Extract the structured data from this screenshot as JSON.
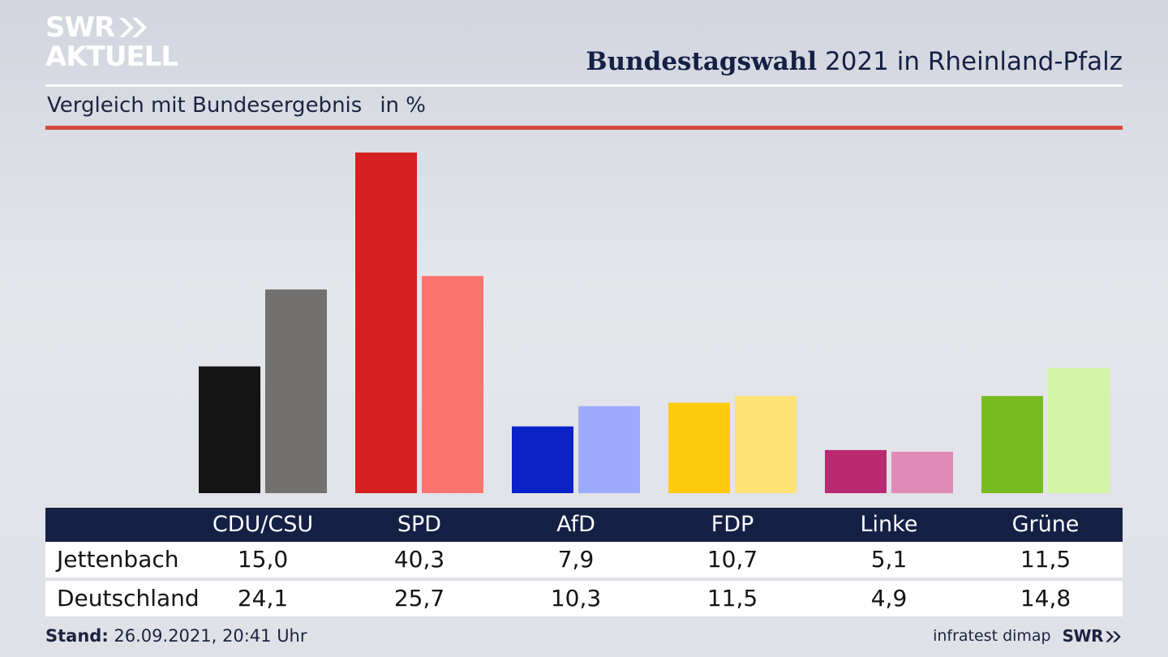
{
  "brand": {
    "line1": "SWR",
    "line2": "AKTUELL",
    "footer_logo": "SWR",
    "chevron_icon": "double-chevron-right-icon"
  },
  "header": {
    "title_bold": "Bundestagswahl",
    "title_rest": "2021 in Rheinland-Pfalz",
    "subtitle": "Vergleich mit Bundesergebnis",
    "unit": "in %"
  },
  "footer": {
    "stand_label": "Stand:",
    "stand_value": "26.09.2021, 20:41 Uhr",
    "source": "infratest dimap"
  },
  "table": {
    "rows": [
      {
        "label": "Jettenbach",
        "values": [
          "15,0",
          "40,3",
          "7,9",
          "10,7",
          "5,1",
          "11,5"
        ]
      },
      {
        "label": "Deutschland",
        "values": [
          "24,1",
          "25,7",
          "10,3",
          "11,5",
          "4,9",
          "14,8"
        ]
      }
    ]
  },
  "chart_data": {
    "type": "bar",
    "title": "Bundestagswahl 2021 in Rheinland-Pfalz",
    "subtitle": "Vergleich mit Bundesergebnis",
    "ylabel": "in %",
    "categories": [
      "CDU/CSU",
      "SPD",
      "AfD",
      "FDP",
      "Linke",
      "Grüne"
    ],
    "series": [
      {
        "name": "Jettenbach",
        "values": [
          15.0,
          40.3,
          7.9,
          10.7,
          5.1,
          11.5
        ]
      },
      {
        "name": "Deutschland",
        "values": [
          24.1,
          25.7,
          10.3,
          11.5,
          4.9,
          14.8
        ]
      }
    ],
    "colors": {
      "Jettenbach": [
        "#141414",
        "#d42020",
        "#0a22c8",
        "#fdcb0c",
        "#b82b72",
        "#77bb1e"
      ],
      "Deutschland": [
        "#73716f",
        "#fd736e",
        "#9dabfc",
        "#fde274",
        "#e08ab8",
        "#d3f6a6"
      ]
    },
    "grid": false,
    "legend": "none"
  },
  "colors": {
    "header_bar": "#152045",
    "accent_rule": "#d44a3e"
  }
}
